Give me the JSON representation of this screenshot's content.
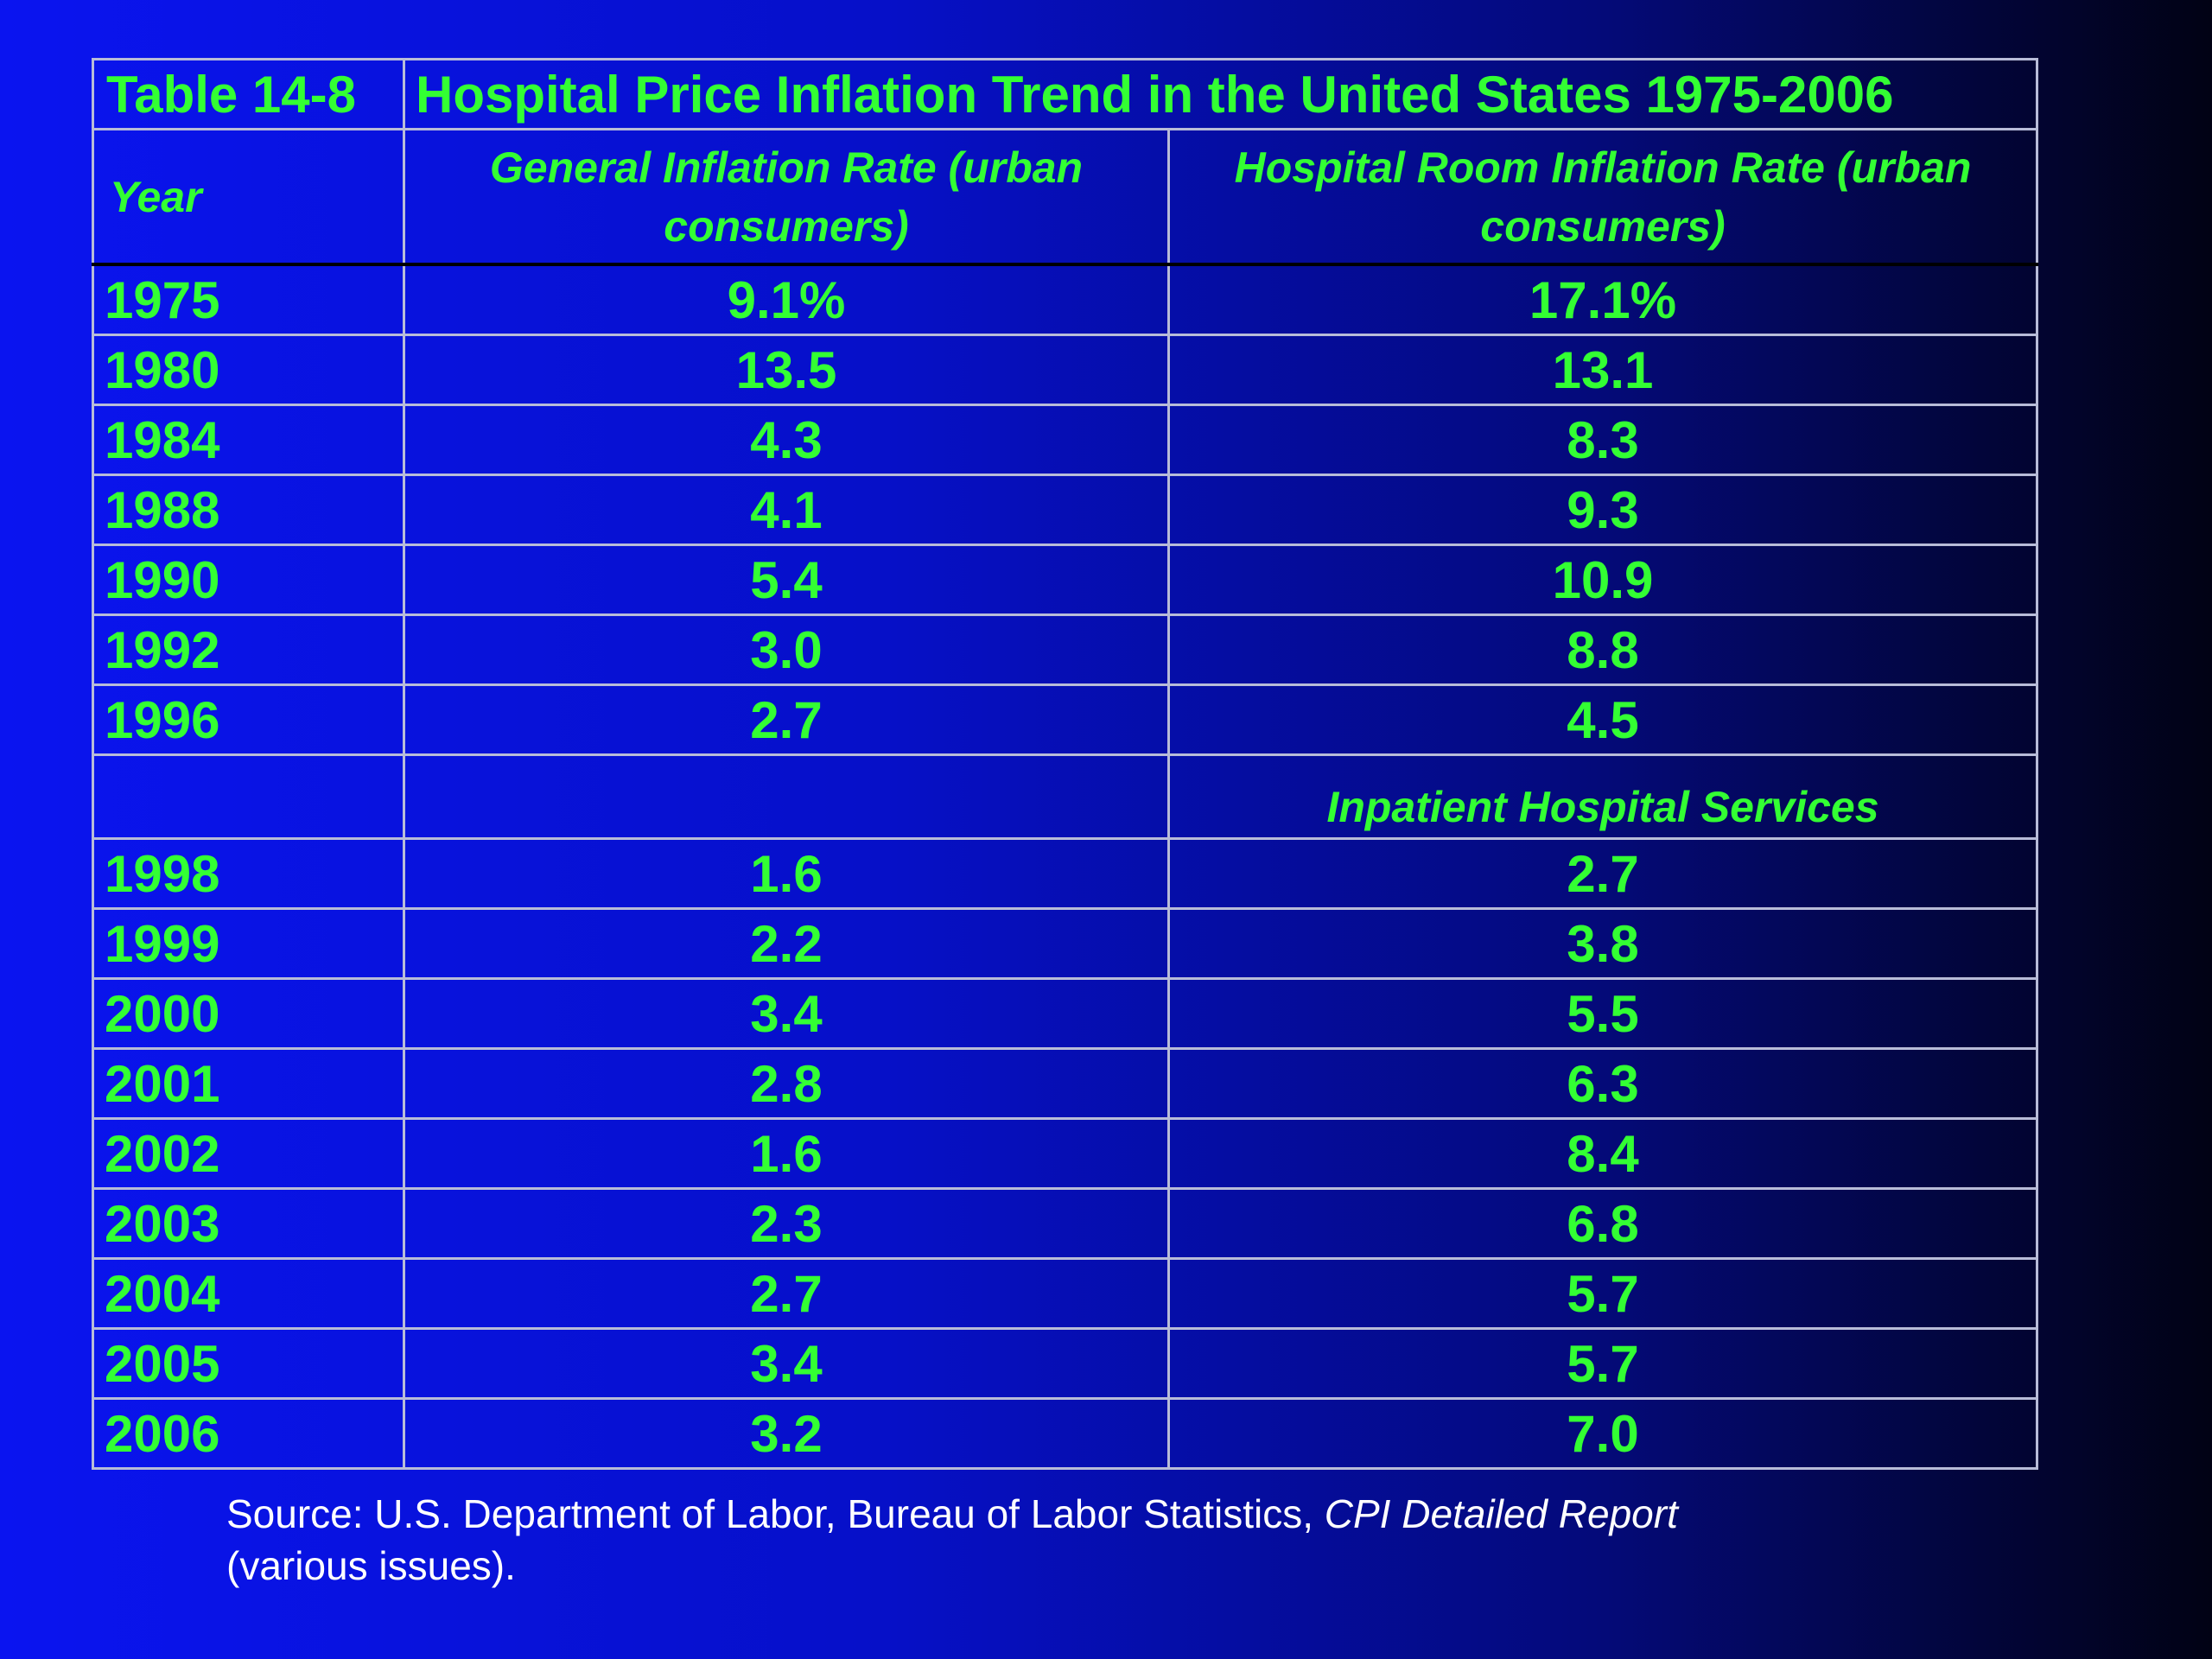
{
  "table": {
    "number": "Table 14-8",
    "title": "Hospital Price Inflation Trend in the United States 1975-2006",
    "headers": {
      "year": "Year",
      "general": "General Inflation Rate (urban consumers)",
      "hospital": "Hospital Room Inflation Rate (urban consumers)"
    },
    "rows_a": [
      {
        "year": "1975",
        "general": "9.1%",
        "hospital": "17.1%"
      },
      {
        "year": "1980",
        "general": "13.5",
        "hospital": "13.1"
      },
      {
        "year": "1984",
        "general": "4.3",
        "hospital": "8.3"
      },
      {
        "year": "1988",
        "general": "4.1",
        "hospital": "9.3"
      },
      {
        "year": "1990",
        "general": "5.4",
        "hospital": "10.9"
      },
      {
        "year": "1992",
        "general": "3.0",
        "hospital": "8.8"
      },
      {
        "year": "1996",
        "general": "2.7",
        "hospital": "4.5"
      }
    ],
    "subheader": "Inpatient Hospital Services",
    "rows_b": [
      {
        "year": "1998",
        "general": "1.6",
        "hospital": "2.7"
      },
      {
        "year": "1999",
        "general": "2.2",
        "hospital": "3.8"
      },
      {
        "year": "2000",
        "general": "3.4",
        "hospital": "5.5"
      },
      {
        "year": "2001",
        "general": "2.8",
        "hospital": "6.3"
      },
      {
        "year": "2002",
        "general": "1.6",
        "hospital": "8.4"
      },
      {
        "year": "2003",
        "general": "2.3",
        "hospital": "6.8"
      },
      {
        "year": "2004",
        "general": "2.7",
        "hospital": "5.7"
      },
      {
        "year": "2005",
        "general": "3.4",
        "hospital": "5.7"
      },
      {
        "year": "2006",
        "general": "3.2",
        "hospital": "7.0"
      }
    ]
  },
  "source": {
    "prefix": "Source:  U.S. Department of Labor, Bureau of Labor Statistics, ",
    "publication": "CPI Detailed Report",
    "suffix": " (various issues)."
  },
  "colors": {
    "text_green": "#33ff33",
    "grid": "#b8bcd8",
    "bg_left": "#0a14f0",
    "bg_right": "#010214",
    "source_text": "#ffffff"
  }
}
